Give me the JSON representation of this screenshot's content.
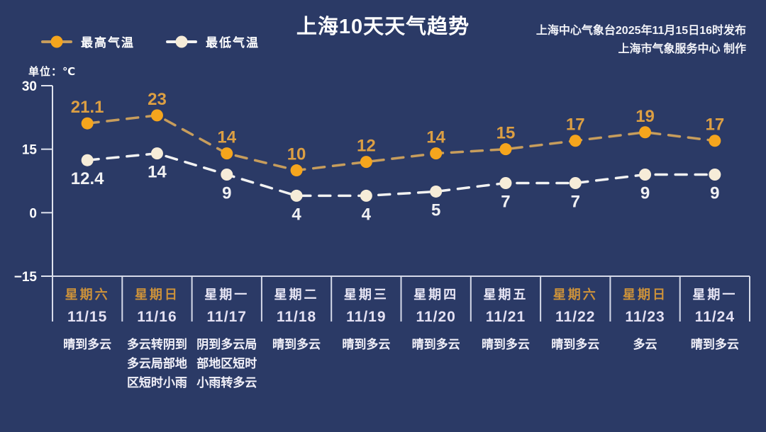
{
  "meta": {
    "background_color": "#2b3a66",
    "axis_color": "#dfe3ee",
    "grid_line_color": "#d6dae9",
    "accent_gold": "#cd923a"
  },
  "header": {
    "title": "上海10天天气趋势",
    "source_line1": "上海中心气象台2025年11月15日16时发布",
    "source_line2": "上海市气象服务中心  制作"
  },
  "legend": {
    "high_label": "最高气温",
    "low_label": "最低气温"
  },
  "chart": {
    "unit_label": "单位：℃"
  },
  "chart_data": {
    "type": "line",
    "title": "上海10天天气趋势",
    "xlabel": "",
    "ylabel": "单位：℃",
    "ylim": [
      -15,
      30
    ],
    "yticks": [
      30,
      15,
      0,
      -15
    ],
    "grid": false,
    "legend_position": "top-left",
    "line_style": "dashed",
    "categories": [
      "11/15",
      "11/16",
      "11/17",
      "11/18",
      "11/19",
      "11/20",
      "11/21",
      "11/22",
      "11/23",
      "11/24"
    ],
    "series": [
      {
        "name": "最高气温",
        "marker_color": "#f5a51d",
        "line_color": "#c79d5c",
        "label_color": "#dc9f43",
        "values": [
          21.1,
          23,
          14,
          10,
          12,
          14,
          15,
          17,
          19,
          17
        ]
      },
      {
        "name": "最低气温",
        "marker_color": "#f6ecd8",
        "line_color": "#f2f2f2",
        "label_color": "#f1f1f3",
        "values": [
          12.4,
          14,
          9,
          4,
          4,
          5,
          7,
          7,
          9,
          9
        ]
      }
    ]
  },
  "days": [
    {
      "weekday": "星期六",
      "date": "11/15",
      "weather": "晴到多云",
      "accent": true
    },
    {
      "weekday": "星期日",
      "date": "11/16",
      "weather": "多云转阴到多云局部地区短时小雨",
      "accent": true
    },
    {
      "weekday": "星期一",
      "date": "11/17",
      "weather": "阴到多云局部地区短时小雨转多云",
      "accent": false
    },
    {
      "weekday": "星期二",
      "date": "11/18",
      "weather": "晴到多云",
      "accent": false
    },
    {
      "weekday": "星期三",
      "date": "11/19",
      "weather": "晴到多云",
      "accent": false
    },
    {
      "weekday": "星期四",
      "date": "11/20",
      "weather": "晴到多云",
      "accent": false
    },
    {
      "weekday": "星期五",
      "date": "11/21",
      "weather": "晴到多云",
      "accent": false
    },
    {
      "weekday": "星期六",
      "date": "11/22",
      "weather": "晴到多云",
      "accent": true
    },
    {
      "weekday": "星期日",
      "date": "11/23",
      "weather": "多云",
      "accent": true
    },
    {
      "weekday": "星期一",
      "date": "11/24",
      "weather": "晴到多云",
      "accent": false
    }
  ]
}
